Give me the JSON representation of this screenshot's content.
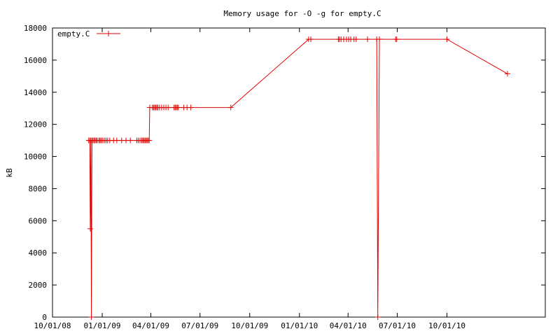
{
  "chart_data": {
    "type": "line",
    "title": "Memory usage for -O -g for empty.C",
    "xlabel": "",
    "ylabel": "kB",
    "ylim": [
      0,
      18000
    ],
    "xlim": [
      "2008-10-01",
      "2011-04-01"
    ],
    "yticks": [
      0,
      2000,
      4000,
      6000,
      8000,
      10000,
      12000,
      14000,
      16000,
      18000
    ],
    "xticks": [
      {
        "date": "2008-10-01",
        "label": "10/01/08"
      },
      {
        "date": "2009-01-01",
        "label": "01/01/09"
      },
      {
        "date": "2009-04-01",
        "label": "04/01/09"
      },
      {
        "date": "2009-07-01",
        "label": "07/01/09"
      },
      {
        "date": "2009-10-01",
        "label": "10/01/09"
      },
      {
        "date": "2010-01-01",
        "label": "01/01/10"
      },
      {
        "date": "2010-04-01",
        "label": "04/01/10"
      },
      {
        "date": "2010-07-01",
        "label": "07/01/10"
      },
      {
        "date": "2010-10-01",
        "label": "10/01/10"
      }
    ],
    "grid": false,
    "legend_position": "top-left",
    "series": [
      {
        "name": "empty.C",
        "color": "#e00000",
        "marker": "plus",
        "x": [
          "2008-12-07",
          "2008-12-09",
          "2008-12-10",
          "2008-12-11",
          "2008-12-12",
          "2008-12-13",
          "2008-12-15",
          "2008-12-17",
          "2008-12-19",
          "2008-12-21",
          "2008-12-23",
          "2008-12-26",
          "2008-12-28",
          "2008-12-30",
          "2009-01-02",
          "2009-01-05",
          "2009-01-08",
          "2009-01-11",
          "2009-01-15",
          "2009-01-22",
          "2009-01-28",
          "2009-02-06",
          "2009-02-14",
          "2009-02-22",
          "2009-03-06",
          "2009-03-09",
          "2009-03-12",
          "2009-03-15",
          "2009-03-17",
          "2009-03-19",
          "2009-03-21",
          "2009-03-23",
          "2009-03-25",
          "2009-03-27",
          "2009-03-29",
          "2009-03-30",
          "2009-04-04",
          "2009-04-06",
          "2009-04-08",
          "2009-04-10",
          "2009-04-12",
          "2009-04-14",
          "2009-04-17",
          "2009-04-21",
          "2009-04-25",
          "2009-04-29",
          "2009-05-03",
          "2009-05-14",
          "2009-05-16",
          "2009-05-18",
          "2009-05-20",
          "2009-05-22",
          "2009-06-01",
          "2009-06-07",
          "2009-06-14",
          "2009-08-27",
          "2010-01-18",
          "2010-01-22",
          "2010-03-14",
          "2010-03-16",
          "2010-03-19",
          "2010-03-24",
          "2010-03-29",
          "2010-04-02",
          "2010-04-06",
          "2010-04-12",
          "2010-04-16",
          "2010-05-07",
          "2010-05-24",
          "2010-05-26",
          "2010-05-29",
          "2010-06-28",
          "2010-06-30",
          "2010-10-01",
          "2011-01-21"
        ],
        "y": [
          11000,
          11000,
          5500,
          11000,
          0,
          11000,
          11000,
          11000,
          11000,
          11000,
          11000,
          11000,
          11000,
          11000,
          11000,
          11000,
          11000,
          11000,
          11000,
          11000,
          11000,
          11000,
          11000,
          11000,
          11000,
          11000,
          11000,
          11000,
          11000,
          11000,
          11000,
          11000,
          11000,
          11000,
          11000,
          13050,
          13050,
          13050,
          13050,
          13050,
          13050,
          13050,
          13050,
          13050,
          13050,
          13050,
          13050,
          13050,
          13050,
          13050,
          13050,
          13050,
          13050,
          13050,
          13050,
          13050,
          17300,
          17300,
          17300,
          17300,
          17300,
          17300,
          17300,
          17300,
          17300,
          17300,
          17300,
          17300,
          17300,
          0,
          17300,
          17300,
          17300,
          17300,
          15150
        ]
      }
    ]
  }
}
